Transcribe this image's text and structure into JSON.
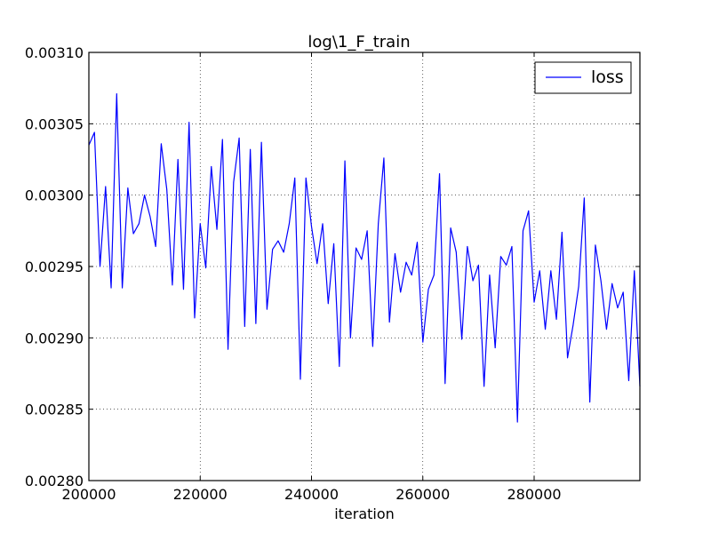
{
  "chart_data": {
    "type": "line",
    "title": "log\\1_F_train",
    "xlabel": "iteration",
    "ylabel": "",
    "xlim": [
      200000,
      299000
    ],
    "ylim": [
      0.0028,
      0.0031
    ],
    "x_ticks": [
      200000,
      220000,
      240000,
      260000,
      280000
    ],
    "x_tick_labels": [
      "200000",
      "220000",
      "240000",
      "260000",
      "280000"
    ],
    "y_ticks": [
      0.0028,
      0.00285,
      0.0029,
      0.00295,
      0.003,
      0.00305,
      0.0031
    ],
    "y_tick_labels": [
      "0.00280",
      "0.00285",
      "0.00290",
      "0.00295",
      "0.00300",
      "0.00305",
      "0.00310"
    ],
    "grid": true,
    "legend_position": "top-right",
    "series": [
      {
        "name": "loss",
        "color": "#0000ff",
        "x": [
          200000,
          201000,
          202000,
          203000,
          204000,
          205000,
          206000,
          207000,
          208000,
          209000,
          210000,
          211000,
          212000,
          213000,
          214000,
          215000,
          216000,
          217000,
          218000,
          219000,
          220000,
          221000,
          222000,
          223000,
          224000,
          225000,
          226000,
          227000,
          228000,
          229000,
          230000,
          231000,
          232000,
          233000,
          234000,
          235000,
          236000,
          237000,
          238000,
          239000,
          240000,
          241000,
          242000,
          243000,
          244000,
          245000,
          246000,
          247000,
          248000,
          249000,
          250000,
          251000,
          252000,
          253000,
          254000,
          255000,
          256000,
          257000,
          258000,
          259000,
          260000,
          261000,
          262000,
          263000,
          264000,
          265000,
          266000,
          267000,
          268000,
          269000,
          270000,
          271000,
          272000,
          273000,
          274000,
          275000,
          276000,
          277000,
          278000,
          279000,
          280000,
          281000,
          282000,
          283000,
          284000,
          285000,
          286000,
          287000,
          288000,
          289000,
          290000,
          291000,
          292000,
          293000,
          294000,
          295000,
          296000,
          297000,
          298000,
          299000
        ],
        "values": [
          0.003035,
          0.003044,
          0.00295,
          0.003006,
          0.002935,
          0.003071,
          0.002935,
          0.003005,
          0.002973,
          0.00298,
          0.003,
          0.002985,
          0.002964,
          0.003036,
          0.003004,
          0.002937,
          0.003025,
          0.002934,
          0.003051,
          0.002914,
          0.00298,
          0.002949,
          0.00302,
          0.002976,
          0.003039,
          0.002892,
          0.003009,
          0.00304,
          0.002908,
          0.003032,
          0.00291,
          0.003037,
          0.00292,
          0.002962,
          0.002968,
          0.00296,
          0.00298,
          0.003012,
          0.002871,
          0.003012,
          0.002978,
          0.002952,
          0.00298,
          0.002924,
          0.002966,
          0.00288,
          0.003024,
          0.0029,
          0.002963,
          0.002955,
          0.002975,
          0.002894,
          0.00298,
          0.003026,
          0.002911,
          0.002959,
          0.002932,
          0.002953,
          0.002944,
          0.002967,
          0.002897,
          0.002934,
          0.002944,
          0.003015,
          0.002868,
          0.002977,
          0.00296,
          0.002899,
          0.002964,
          0.00294,
          0.002951,
          0.002866,
          0.002944,
          0.002893,
          0.002957,
          0.002951,
          0.002964,
          0.002841,
          0.002975,
          0.002989,
          0.002925,
          0.002947,
          0.002906,
          0.002947,
          0.002913,
          0.002974,
          0.002886,
          0.002909,
          0.002936,
          0.002998,
          0.002855,
          0.002965,
          0.00294,
          0.002906,
          0.002938,
          0.002921,
          0.002932,
          0.00287,
          0.002947,
          0.002866
        ]
      }
    ]
  }
}
